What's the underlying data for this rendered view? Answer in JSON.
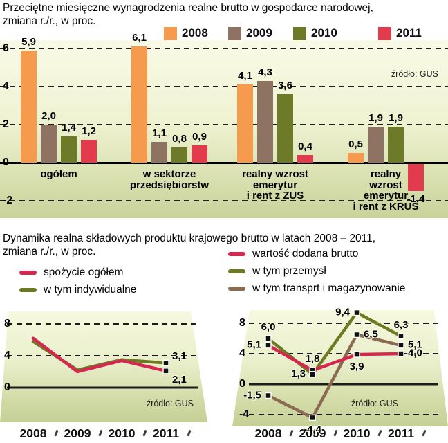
{
  "chart1": {
    "title_line1": "Przeciętne miesięczne wynagrodzenia realne brutto w gospodarce narodowej,",
    "title_line2": "zmiana r./r., w proc.",
    "legend": [
      {
        "label": "2008",
        "color": "#f69a4e"
      },
      {
        "label": "2009",
        "color": "#8e7362"
      },
      {
        "label": "2010",
        "color": "#6d7b29"
      },
      {
        "label": "2011",
        "color": "#e13b4d"
      }
    ]
  },
  "section2": {
    "title_line1": "Dynamika realna składowych produktu krajowego brutto w latach 2008 – 2011,",
    "title_line2": "zmiana r./r., w proc."
  },
  "chart_data": [
    {
      "type": "bar",
      "title": "Przeciętne miesięczne wynagrodzenia realne brutto w gospodarce narodowej, zmiana r./r., w proc.",
      "source": "źródło: GUS",
      "ylim": [
        -2,
        6
      ],
      "yticks": [
        {
          "v": 6,
          "label": "6"
        },
        {
          "v": 4,
          "label": "4"
        },
        {
          "v": 2,
          "label": "2"
        },
        {
          "v": 0,
          "label": "0"
        },
        {
          "v": -2,
          "label": "-2"
        }
      ],
      "categories": [
        "ogółem",
        "w sektorze przedsiębiorstw",
        "realny wzrost emerytur i rent z ZUS",
        "realny wzrost emerytur i rent z KRUS"
      ],
      "categories_display": [
        "ogółem",
        "w sektorze\nprzedsiębiorstw",
        "realny wzrost\nemerytur\ni rent z ZUS",
        "realny\nwzrost\nemerytur\ni rent z KRUS"
      ],
      "series": [
        {
          "name": "2008",
          "color": "#f69a4e",
          "values": [
            5.9,
            6.1,
            4.1,
            0.5
          ],
          "labels": [
            "5,9",
            "6,1",
            "4,1",
            "0,5"
          ]
        },
        {
          "name": "2009",
          "color": "#8e7362",
          "values": [
            2.0,
            1.1,
            4.3,
            1.9
          ],
          "labels": [
            "2,0",
            "1,1",
            "4,3",
            "1,9"
          ]
        },
        {
          "name": "2010",
          "color": "#6d7b29",
          "values": [
            1.4,
            0.8,
            3.6,
            1.9
          ],
          "labels": [
            "1,4",
            "0,8",
            "3,6",
            "1,9"
          ]
        },
        {
          "name": "2011",
          "color": "#e13b4d",
          "values": [
            1.2,
            0.9,
            0.4,
            -1.4
          ],
          "labels": [
            "1,2",
            "0,9",
            "0,4",
            "-1,4"
          ]
        }
      ]
    },
    {
      "type": "line",
      "source": "źródło: GUS",
      "x": [
        "2008",
        "2009",
        "2010",
        "2011"
      ],
      "ylim": [
        0,
        8
      ],
      "yticks": [
        {
          "v": 8,
          "label": "8"
        },
        {
          "v": 4,
          "label": "4"
        },
        {
          "v": 0,
          "label": "0"
        }
      ],
      "series": [
        {
          "name": "spożycie ogółem",
          "color": "#d62750",
          "values": [
            6.2,
            2.0,
            3.4,
            2.1
          ],
          "labels": [
            null,
            null,
            null,
            "2,1"
          ],
          "label_pos": [
            null,
            null,
            null,
            "downright"
          ]
        },
        {
          "name": "w tym indywidualne",
          "color": "#6c7a22",
          "values": [
            5.8,
            2.2,
            3.5,
            3.1
          ],
          "labels": [
            null,
            null,
            null,
            "3,1"
          ],
          "label_pos": [
            null,
            null,
            null,
            "upright"
          ]
        }
      ]
    },
    {
      "type": "line",
      "source": "źródło: GUS",
      "x": [
        "2008",
        "2009",
        "2010",
        "2011"
      ],
      "ylim": [
        -4,
        8
      ],
      "yticks": [
        {
          "v": 8,
          "label": "8"
        },
        {
          "v": 4,
          "label": "4"
        },
        {
          "v": 0,
          "label": "0"
        },
        {
          "v": -4,
          "label": "-4"
        }
      ],
      "series": [
        {
          "name": "wartość dodana brutto",
          "color": "#d62750",
          "values": [
            5.1,
            1.8,
            3.9,
            4.0
          ],
          "labels": [
            "5,1",
            "1,8",
            "3,9",
            "4,0"
          ],
          "label_pos": [
            "left",
            "above",
            "below",
            "right"
          ]
        },
        {
          "name": "w tym przemysł",
          "color": "#6c7a22",
          "values": [
            6.0,
            1.3,
            9.4,
            6.3
          ],
          "labels": [
            "6,0",
            "1,3",
            "9,4",
            "6,3"
          ],
          "label_pos": [
            "above",
            "left",
            "left",
            "above"
          ]
        },
        {
          "name": "w tym transprt i magazynowanie",
          "color": "#8a6b52",
          "values": [
            -1.5,
            -4.4,
            6.5,
            5.1
          ],
          "labels": [
            "-1,5",
            "-4,4",
            "6,5",
            "5,1"
          ],
          "label_pos": [
            "left",
            "below",
            "right",
            "right"
          ]
        }
      ]
    }
  ]
}
